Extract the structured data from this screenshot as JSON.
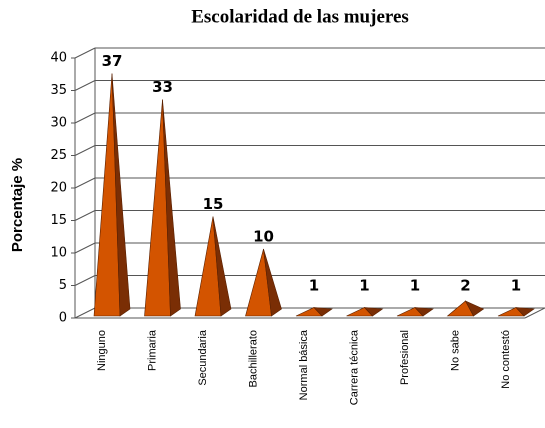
{
  "chart_data": {
    "type": "pyramid",
    "title": "Escolaridad de las mujeres",
    "y_label": "Porcentaje %",
    "categories": [
      "Ninguno",
      "Primaria",
      "Secundaria",
      "Bachillerato",
      "Normal básica",
      "Carrera técnica",
      "Profesional",
      "No sabe",
      "No contestó"
    ],
    "values": [
      37,
      33,
      15,
      10,
      1,
      1,
      1,
      2,
      1
    ],
    "color": "#d35400",
    "side_color": "#7a2e05",
    "ylim": [
      0,
      40
    ],
    "yticks": [
      0,
      5,
      10,
      15,
      20,
      25,
      30,
      35,
      40
    ],
    "grid": true
  }
}
